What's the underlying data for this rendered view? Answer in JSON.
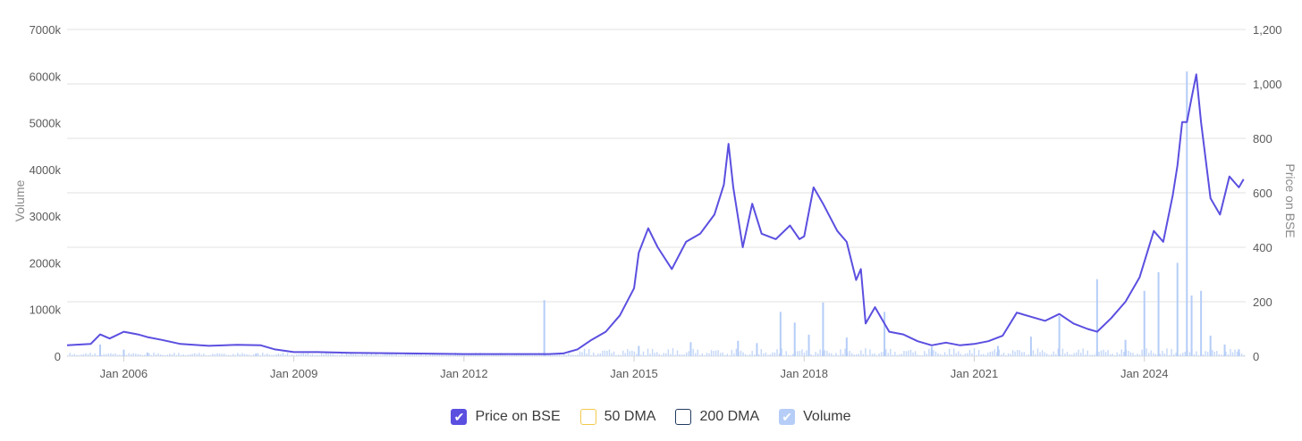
{
  "chart_data": {
    "type": "line",
    "ylabel_left": "Volume",
    "ylabel_right": "Price on BSE",
    "left_axis": {
      "ticks": [
        "0",
        "1000k",
        "2000k",
        "3000k",
        "4000k",
        "5000k",
        "6000k",
        "7000k"
      ],
      "ylim": [
        0,
        7000000
      ]
    },
    "right_axis": {
      "ticks": [
        "0",
        "200",
        "400",
        "600",
        "800",
        "1,000",
        "1,200"
      ],
      "ylim": [
        0,
        1200
      ]
    },
    "x_ticks": [
      "Jan 2006",
      "Jan 2009",
      "Jan 2012",
      "Jan 2015",
      "Jan 2018",
      "Jan 2021",
      "Jan 2024"
    ],
    "xlim": [
      "2005-01",
      "2025-03"
    ],
    "grid": true,
    "series": [
      {
        "name": "Price on BSE",
        "axis": "right",
        "color": "#5b4fe0",
        "points": [
          [
            "2005-01",
            40
          ],
          [
            "2005-06",
            45
          ],
          [
            "2005-08",
            80
          ],
          [
            "2005-10",
            65
          ],
          [
            "2006-01",
            90
          ],
          [
            "2006-04",
            80
          ],
          [
            "2006-06",
            70
          ],
          [
            "2006-09",
            60
          ],
          [
            "2007-01",
            45
          ],
          [
            "2007-07",
            38
          ],
          [
            "2008-01",
            42
          ],
          [
            "2008-06",
            40
          ],
          [
            "2008-09",
            25
          ],
          [
            "2009-01",
            15
          ],
          [
            "2009-06",
            15
          ],
          [
            "2010-01",
            12
          ],
          [
            "2011-01",
            10
          ],
          [
            "2012-01",
            8
          ],
          [
            "2013-01",
            8
          ],
          [
            "2013-07",
            8
          ],
          [
            "2013-10",
            10
          ],
          [
            "2014-01",
            25
          ],
          [
            "2014-04",
            60
          ],
          [
            "2014-07",
            90
          ],
          [
            "2014-10",
            150
          ],
          [
            "2015-01",
            250
          ],
          [
            "2015-02",
            380
          ],
          [
            "2015-04",
            470
          ],
          [
            "2015-06",
            400
          ],
          [
            "2015-09",
            320
          ],
          [
            "2015-12",
            420
          ],
          [
            "2016-03",
            450
          ],
          [
            "2016-06",
            520
          ],
          [
            "2016-08",
            630
          ],
          [
            "2016-09",
            780
          ],
          [
            "2016-10",
            620
          ],
          [
            "2016-12",
            400
          ],
          [
            "2017-02",
            560
          ],
          [
            "2017-04",
            450
          ],
          [
            "2017-07",
            430
          ],
          [
            "2017-10",
            480
          ],
          [
            "2017-12",
            430
          ],
          [
            "2018-01",
            440
          ],
          [
            "2018-03",
            620
          ],
          [
            "2018-05",
            560
          ],
          [
            "2018-08",
            460
          ],
          [
            "2018-10",
            420
          ],
          [
            "2018-12",
            280
          ],
          [
            "2019-01",
            320
          ],
          [
            "2019-02",
            120
          ],
          [
            "2019-04",
            180
          ],
          [
            "2019-07",
            90
          ],
          [
            "2019-10",
            80
          ],
          [
            "2020-01",
            55
          ],
          [
            "2020-04",
            40
          ],
          [
            "2020-07",
            50
          ],
          [
            "2020-10",
            40
          ],
          [
            "2021-01",
            45
          ],
          [
            "2021-04",
            55
          ],
          [
            "2021-07",
            75
          ],
          [
            "2021-10",
            160
          ],
          [
            "2022-01",
            145
          ],
          [
            "2022-04",
            130
          ],
          [
            "2022-07",
            155
          ],
          [
            "2022-10",
            120
          ],
          [
            "2023-01",
            100
          ],
          [
            "2023-03",
            90
          ],
          [
            "2023-06",
            140
          ],
          [
            "2023-09",
            200
          ],
          [
            "2023-12",
            290
          ],
          [
            "2024-03",
            460
          ],
          [
            "2024-05",
            420
          ],
          [
            "2024-07",
            590
          ],
          [
            "2024-08",
            700
          ],
          [
            "2024-09",
            860
          ],
          [
            "2024-10",
            860
          ],
          [
            "2024-11",
            950
          ],
          [
            "2024-12",
            1035
          ],
          [
            "2025-01",
            860
          ],
          [
            "2025-02",
            720
          ],
          [
            "2025-03",
            580
          ],
          [
            "2025-05",
            520
          ],
          [
            "2025-07",
            660
          ],
          [
            "2025-09",
            620
          ],
          [
            "2025-10",
            650
          ]
        ]
      },
      {
        "name": "50 DMA",
        "axis": "right",
        "color": "#f2c94c",
        "points": []
      },
      {
        "name": "200 DMA",
        "axis": "right",
        "color": "#1f3a5f",
        "points": []
      },
      {
        "name": "Volume",
        "axis": "left",
        "color": "#b5cdf7",
        "type": "bar",
        "points": [
          [
            "2005-08",
            250000
          ],
          [
            "2006-01",
            140000
          ],
          [
            "2006-06",
            80000
          ],
          [
            "2008-05",
            60000
          ],
          [
            "2013-06",
            1200000
          ],
          [
            "2015-02",
            220000
          ],
          [
            "2016-01",
            300000
          ],
          [
            "2016-11",
            330000
          ],
          [
            "2017-03",
            280000
          ],
          [
            "2017-08",
            950000
          ],
          [
            "2017-11",
            720000
          ],
          [
            "2018-02",
            460000
          ],
          [
            "2018-05",
            1150000
          ],
          [
            "2018-10",
            400000
          ],
          [
            "2019-06",
            950000
          ],
          [
            "2020-04",
            200000
          ],
          [
            "2021-06",
            220000
          ],
          [
            "2022-01",
            420000
          ],
          [
            "2022-07",
            860000
          ],
          [
            "2023-03",
            1650000
          ],
          [
            "2023-09",
            350000
          ],
          [
            "2024-01",
            1400000
          ],
          [
            "2024-04",
            1800000
          ],
          [
            "2024-08",
            2000000
          ],
          [
            "2024-10",
            6100000
          ],
          [
            "2024-11",
            1300000
          ],
          [
            "2025-01",
            1400000
          ],
          [
            "2025-03",
            440000
          ],
          [
            "2025-06",
            250000
          ],
          [
            "2025-09",
            150000
          ]
        ]
      }
    ]
  },
  "legend": [
    {
      "label": "Price on BSE",
      "checked": true,
      "color": "#5b4fe0"
    },
    {
      "label": "50 DMA",
      "checked": false,
      "color": "#f2c94c"
    },
    {
      "label": "200 DMA",
      "checked": false,
      "color": "#1f3a5f"
    },
    {
      "label": "Volume",
      "checked": true,
      "color": "#b5cdf7"
    }
  ]
}
